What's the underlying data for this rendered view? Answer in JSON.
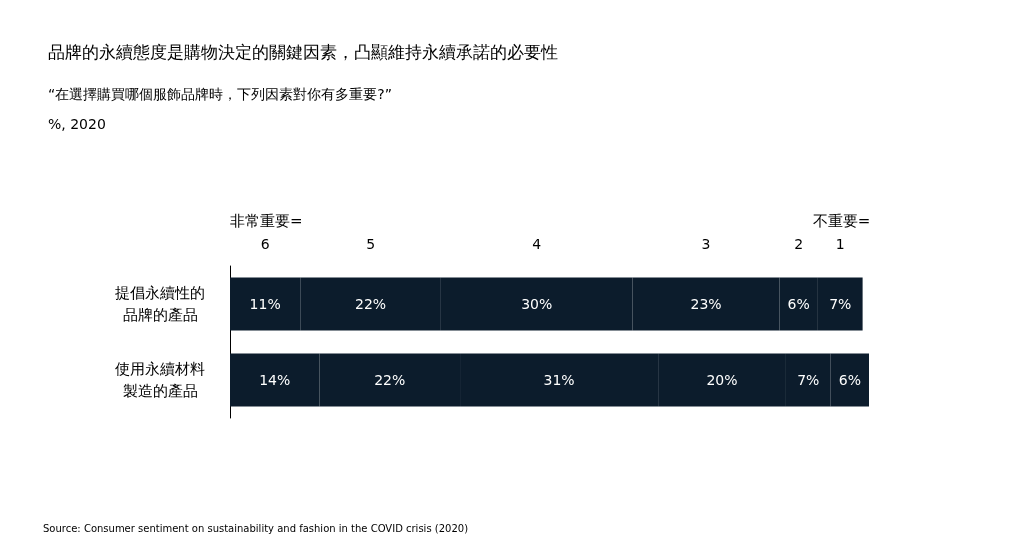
{
  "chart_data": {
    "type": "bar",
    "orientation": "horizontal",
    "stacked": true,
    "title": "品牌的永續態度是購物決定的關鍵因素，凸顯維持永續承諾的必要性",
    "subtitle": "“在選擇購買哪個服飾品牌時，下列因素對你有多重要?”\n%, 2020",
    "categories": [
      "提倡永續性的品牌的產品",
      "使用永續材料製造的產品"
    ],
    "series": [
      {
        "name": "6",
        "color": "#0c1c2c",
        "values": [
          11,
          14
        ],
        "value_labels": [
          "11%",
          "14%"
        ]
      },
      {
        "name": "5",
        "color": "#0c1c2c",
        "values": [
          22,
          22
        ],
        "value_labels": [
          "22%",
          "22%"
        ]
      },
      {
        "name": "4",
        "color": "#0c1c2c",
        "values": [
          30,
          31
        ],
        "value_labels": [
          "30%",
          "31%"
        ]
      },
      {
        "name": "3",
        "color": "#0c1c2c",
        "values": [
          23,
          20
        ],
        "value_labels": [
          "23%",
          "20%"
        ]
      },
      {
        "name": "2",
        "color": "#0c1c2c",
        "values": [
          6,
          7
        ],
        "value_labels": [
          "6%",
          "7%"
        ]
      },
      {
        "name": "1",
        "color": "#0c1c2c",
        "values": [
          7,
          6
        ],
        "value_labels": [
          "7%",
          "6%"
        ]
      }
    ],
    "annotations": [
      "非常重要=",
      "不重要=",
      "Source: Consumer sentiment on sustainability and fashion in the COVID crisis (2020)"
    ],
    "grid": false,
    "legend": false
  }
}
